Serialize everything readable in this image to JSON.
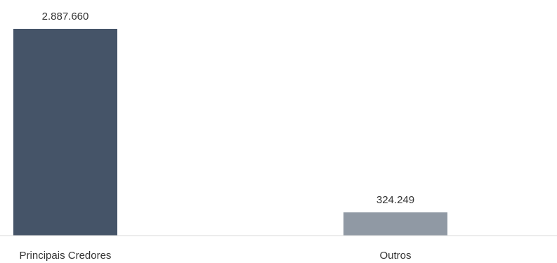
{
  "chart_data": {
    "type": "bar",
    "categories": [
      "Principais Credores",
      "Outros"
    ],
    "values": [
      2887660,
      324249
    ],
    "value_labels": [
      "2.887.660",
      "324.249"
    ],
    "title": "",
    "xlabel": "",
    "ylabel": "",
    "ylim": [
      0,
      2887660
    ],
    "grid": false,
    "legend": "none",
    "bar_colors": [
      "#455468",
      "#9099a4"
    ],
    "axis_color": "#d9d9d9",
    "text_color": "#333333"
  }
}
